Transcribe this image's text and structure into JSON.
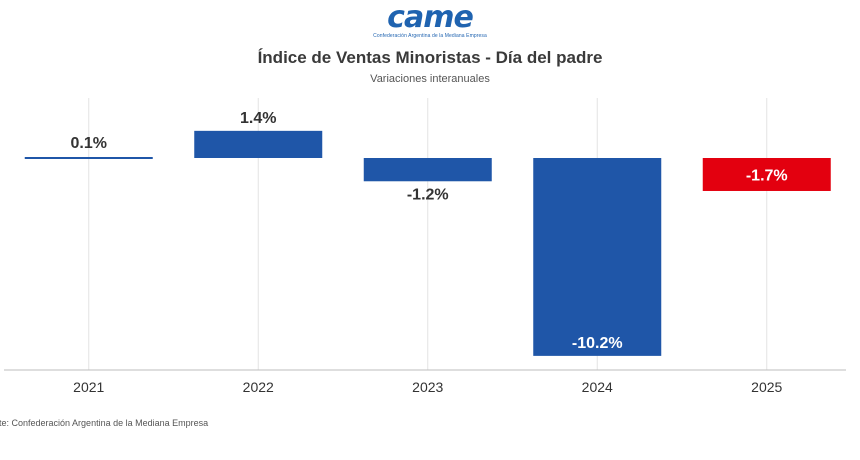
{
  "logo": {
    "text": "came",
    "tagline": "Confederación Argentina de la Mediana Empresa"
  },
  "chart_data": {
    "type": "bar",
    "title": "Índice de Ventas Minoristas - Día del padre",
    "subtitle": "Variaciones interanuales",
    "categories": [
      "2021",
      "2022",
      "2023",
      "2024",
      "2025"
    ],
    "values": [
      0.1,
      1.4,
      -1.2,
      -10.2,
      -1.7
    ],
    "labels": [
      "0.1%",
      "1.4%",
      "-1.2%",
      "-10.2%",
      "-1.7%"
    ],
    "colors": [
      "#1f56a8",
      "#1f56a8",
      "#1f56a8",
      "#1f56a8",
      "#e3000f"
    ],
    "xlabel": "",
    "ylabel": "",
    "ylim": [
      -11,
      1.6
    ],
    "grid": "vertical",
    "legend": "none"
  },
  "source": "nte: Confederación Argentina de la Mediana Empresa"
}
